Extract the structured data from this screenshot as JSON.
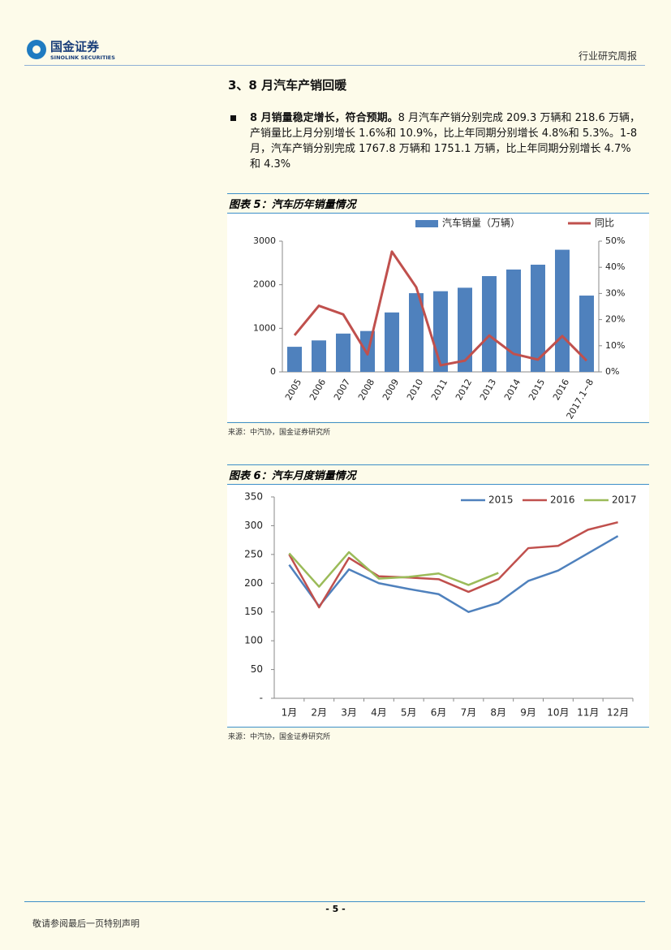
{
  "header": {
    "logo_cn": "国金证券",
    "logo_en": "SINOLINK SECURITIES",
    "report_type": "行业研究周报"
  },
  "section": {
    "title": "3、8 月汽车产销回暖",
    "lead": "8 月销量稳定增长，符合预期。",
    "text": "8 月汽车产销分别完成 209.3 万辆和 218.6 万辆，产销量比上月分别增长 1.6%和 10.9%，比上年同期分别增长 4.8%和 5.3%。1-8 月，汽车产销分别完成 1767.8 万辆和 1751.1 万辆，比上年同期分别增长 4.7%和 4.3%"
  },
  "chart_data": [
    {
      "type": "combo",
      "title": "图表 5：汽车历年销量情况",
      "source": "来源：中汽协，国金证券研究所",
      "categories": [
        "2005",
        "2006",
        "2007",
        "2008",
        "2009",
        "2010",
        "2011",
        "2012",
        "2013",
        "2014",
        "2015",
        "2016",
        "2017.1~8"
      ],
      "series": [
        {
          "name": "汽车销量（万辆）",
          "type": "bar",
          "color": "#4f81bd",
          "values": [
            576,
            722,
            879,
            938,
            1364,
            1806,
            1851,
            1931,
            2198,
            2349,
            2460,
            2803,
            1751
          ]
        },
        {
          "name": "同比",
          "type": "line",
          "axis": "y2",
          "color": "#c0504d",
          "values": [
            14,
            25.3,
            22,
            6.7,
            46,
            32.4,
            2.5,
            4.3,
            13.9,
            6.9,
            4.7,
            13.7,
            4.3
          ]
        }
      ],
      "ylim": [
        0,
        3000
      ],
      "yticks": [
        0,
        1000,
        2000,
        3000
      ],
      "y2lim": [
        0,
        50
      ],
      "y2ticks": [
        {
          "value": 0,
          "label": "0%"
        },
        {
          "value": 10,
          "label": "10%"
        },
        {
          "value": 20,
          "label": "20%"
        },
        {
          "value": 30,
          "label": "30%"
        },
        {
          "value": 40,
          "label": "40%"
        },
        {
          "value": 50,
          "label": "50%"
        }
      ]
    },
    {
      "type": "line",
      "title": "图表 6：汽车月度销量情况",
      "source": "来源：中汽协，国金证券研究所",
      "categories": [
        "1月",
        "2月",
        "3月",
        "4月",
        "5月",
        "6月",
        "7月",
        "8月",
        "9月",
        "10月",
        "11月",
        "12月"
      ],
      "series": [
        {
          "name": "2015",
          "color": "#4f81bd",
          "values": [
            232,
            160,
            224,
            200,
            190,
            181,
            150,
            166,
            204,
            222,
            252,
            282
          ]
        },
        {
          "name": "2016",
          "color": "#c0504d",
          "values": [
            250,
            158,
            244,
            212,
            210,
            207,
            185,
            207,
            261,
            265,
            293,
            306
          ]
        },
        {
          "name": "2017",
          "color": "#9bbb59",
          "values": [
            252,
            194,
            254,
            208,
            211,
            217,
            197,
            218,
            null,
            null,
            null,
            null
          ]
        }
      ],
      "ylim": [
        0,
        350
      ],
      "yticks": [
        {
          "value": 0,
          "label": "-"
        },
        50,
        100,
        150,
        200,
        250,
        300,
        350
      ]
    }
  ],
  "footer": {
    "page": "- 5 -",
    "disclaimer": "敬请参阅最后一页特别声明"
  }
}
